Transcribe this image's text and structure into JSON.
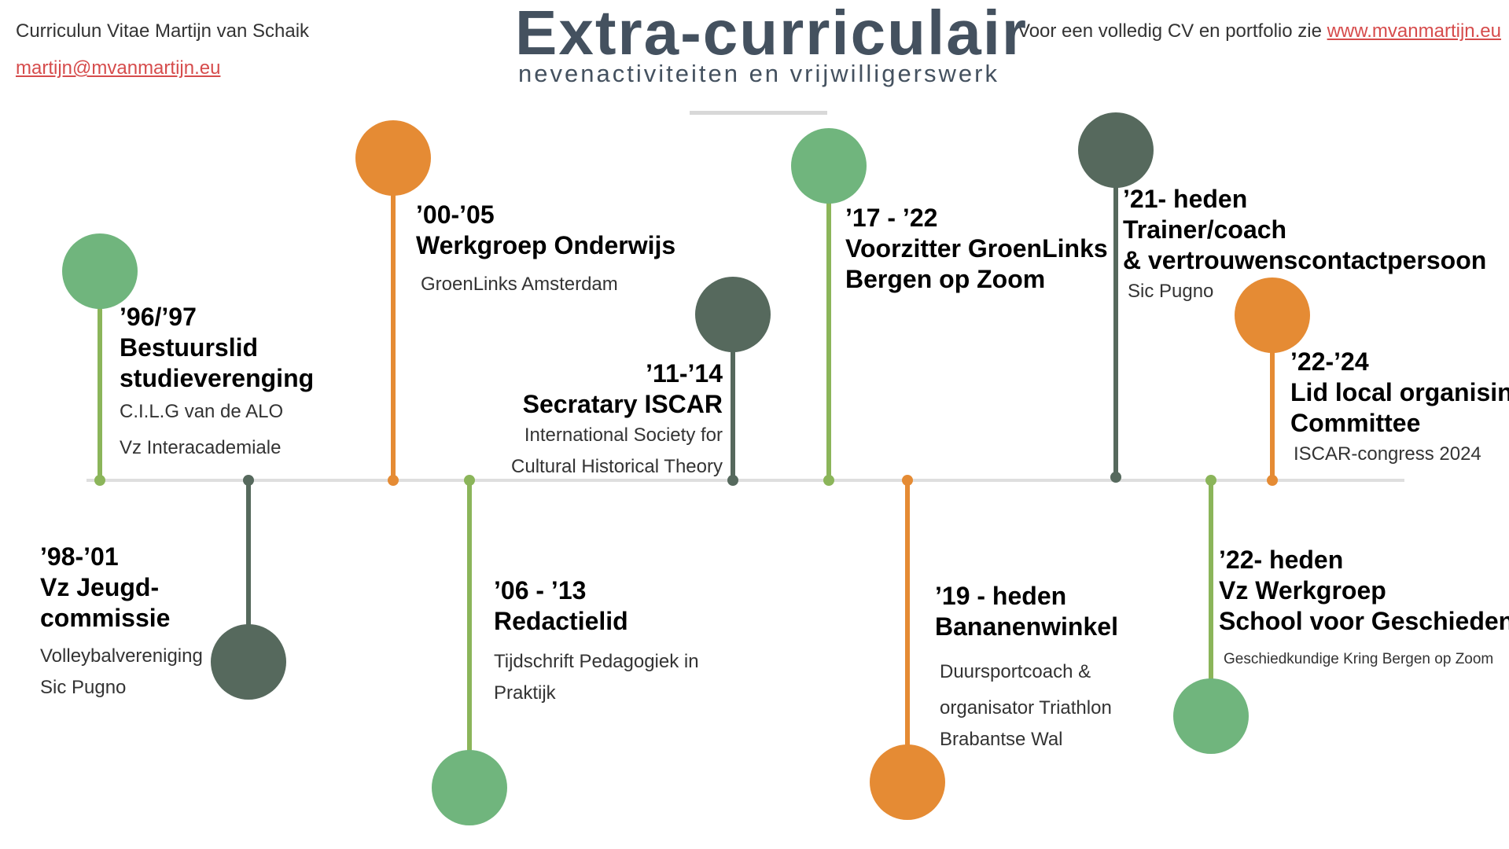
{
  "header": {
    "cv_line": "Curriculun Vitae Martijn van Schaik",
    "email": "martijn@mvanmartijn.eu",
    "portfolio_prefix": "Voor een volledig CV en portfolio zie ",
    "portfolio_link": "www.mvanmartijn.eu",
    "title": "Extra-curriculair",
    "subtitle": "nevenactiviteiten en vrijwilligerswerk"
  },
  "colors": {
    "green": "#70b57d",
    "orange": "#e58b34",
    "slate": "#56695d",
    "title": "#44515f",
    "link": "#d64c4c"
  },
  "events": [
    {
      "color": "green",
      "lines": [
        "’96/’97",
        "Bestuurslid",
        "studieverenging"
      ],
      "details": [
        "C.I.L.G van de ALO",
        "Vz Interacademiale"
      ]
    },
    {
      "color": "slate",
      "lines": [
        "’98-’01",
        "Vz Jeugd-",
        "commissie"
      ],
      "details": [
        "Volleybalvereniging",
        "Sic Pugno"
      ]
    },
    {
      "color": "orange",
      "lines": [
        "’00-’05",
        "Werkgroep Onderwijs"
      ],
      "details": [
        "GroenLinks Amsterdam"
      ]
    },
    {
      "color": "green",
      "lines": [
        "’06 - ’13",
        "Redactielid"
      ],
      "details": [
        "Tijdschrift Pedagogiek in",
        "Praktijk"
      ]
    },
    {
      "color": "slate",
      "lines": [
        "’11-’14",
        "Secratary ISCAR"
      ],
      "details": [
        "International Society for",
        "Cultural Historical Theory"
      ]
    },
    {
      "color": "green",
      "lines": [
        "’17 - ’22",
        "Voorzitter GroenLinks",
        "Bergen op Zoom"
      ],
      "details": []
    },
    {
      "color": "orange",
      "lines": [
        "’19 - heden",
        "Bananenwinkel"
      ],
      "details": [
        "Duursportcoach &",
        "organisator Triathlon",
        "Brabantse Wal"
      ]
    },
    {
      "color": "slate",
      "lines": [
        "’21- heden",
        "Trainer/coach",
        "& vertrouwenscontactpersoon"
      ],
      "details": [
        "Sic Pugno"
      ]
    },
    {
      "color": "green",
      "lines": [
        "’22- heden",
        "Vz Werkgroep",
        "School voor Geschiedenis"
      ],
      "details": [
        "Geschiedkundige Kring Bergen op Zoom"
      ]
    },
    {
      "color": "orange",
      "lines": [
        "’22-’24",
        "Lid local organising",
        "Committee"
      ],
      "details": [
        "ISCAR-congress 2024"
      ]
    }
  ]
}
